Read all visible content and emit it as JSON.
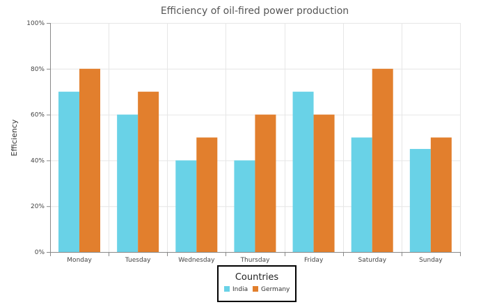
{
  "chart_data": {
    "type": "bar",
    "title": "Efficiency of oil-fired power production",
    "xlabel": "",
    "ylabel": "Efficiency",
    "categories": [
      "Monday",
      "Tuesday",
      "Wednesday",
      "Thursday",
      "Friday",
      "Saturday",
      "Sunday"
    ],
    "series": [
      {
        "name": "India",
        "color": "#69d2e7",
        "values": [
          70,
          60,
          40,
          40,
          70,
          50,
          45
        ]
      },
      {
        "name": "Germany",
        "color": "#e27f2d",
        "values": [
          80,
          70,
          50,
          60,
          60,
          80,
          50
        ]
      }
    ],
    "ylim": [
      0,
      100
    ],
    "yticks": [
      "0%",
      "20%",
      "40%",
      "60%",
      "80%",
      "100%"
    ],
    "ytick_values": [
      0,
      20,
      40,
      60,
      80,
      100
    ],
    "grid": true,
    "legend": {
      "title": "Countries",
      "placement": "bottom-center"
    }
  }
}
